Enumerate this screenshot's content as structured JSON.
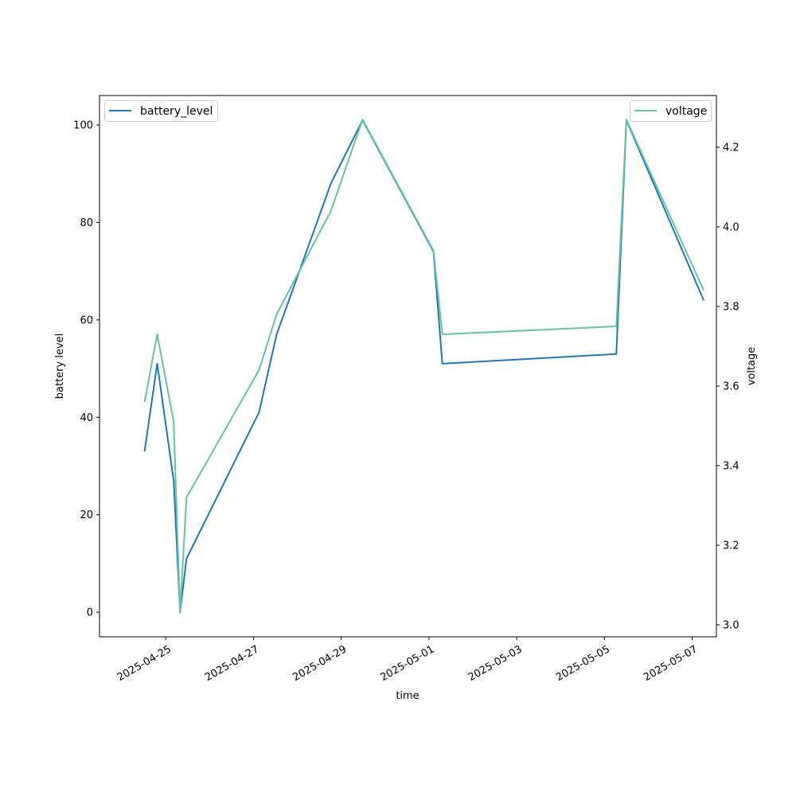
{
  "chart_data": {
    "type": "line",
    "xlabel": "time",
    "ylabel_left": "battery level",
    "ylabel_right": "voltage",
    "x_ticks": [
      "2025-04-25",
      "2025-04-27",
      "2025-04-29",
      "2025-05-01",
      "2025-05-03",
      "2025-05-05",
      "2025-05-07"
    ],
    "x_range": [
      "2025-04-23T11:45",
      "2025-05-07T13:15"
    ],
    "y_left_ticks": [
      "0",
      "20",
      "40",
      "60",
      "80",
      "100"
    ],
    "y_left_range": [
      -5.05,
      106.05
    ],
    "y_right_ticks": [
      "3.0",
      "3.2",
      "3.4",
      "3.6",
      "3.8",
      "4.0",
      "4.2"
    ],
    "y_right_range": [
      2.97,
      4.33
    ],
    "grid": false,
    "series": [
      {
        "name": "battery_level",
        "axis": "left",
        "color": "#1f77b4",
        "legend_position": "upper-left",
        "points": [
          {
            "x": "2025-04-24T12:25",
            "y": 33
          },
          {
            "x": "2025-04-24T19:20",
            "y": 51
          },
          {
            "x": "2025-04-25T04:20",
            "y": 27
          },
          {
            "x": "2025-04-25T07:50",
            "y": 0
          },
          {
            "x": "2025-04-25T11:20",
            "y": 11
          },
          {
            "x": "2025-04-27T03:00",
            "y": 41
          },
          {
            "x": "2025-04-27T12:40",
            "y": 57
          },
          {
            "x": "2025-04-28T18:20",
            "y": 88
          },
          {
            "x": "2025-04-29T11:40",
            "y": 101
          },
          {
            "x": "2025-05-01T02:30",
            "y": 74
          },
          {
            "x": "2025-05-01T07:20",
            "y": 51
          },
          {
            "x": "2025-05-05T06:30",
            "y": 53
          },
          {
            "x": "2025-05-05T12:00",
            "y": 101
          },
          {
            "x": "2025-05-07T06:20",
            "y": 64
          }
        ]
      },
      {
        "name": "voltage",
        "axis": "right",
        "color": "#66c2a5",
        "legend_position": "upper-right",
        "points": [
          {
            "x": "2025-04-24T12:25",
            "y": 3.56
          },
          {
            "x": "2025-04-24T19:20",
            "y": 3.73
          },
          {
            "x": "2025-04-25T04:20",
            "y": 3.51
          },
          {
            "x": "2025-04-25T07:50",
            "y": 3.03
          },
          {
            "x": "2025-04-25T11:20",
            "y": 3.32
          },
          {
            "x": "2025-04-27T03:00",
            "y": 3.64
          },
          {
            "x": "2025-04-27T12:40",
            "y": 3.78
          },
          {
            "x": "2025-04-28T18:20",
            "y": 4.04
          },
          {
            "x": "2025-04-29T11:40",
            "y": 4.27
          },
          {
            "x": "2025-05-01T02:30",
            "y": 3.94
          },
          {
            "x": "2025-05-01T07:20",
            "y": 3.73
          },
          {
            "x": "2025-05-05T06:30",
            "y": 3.75
          },
          {
            "x": "2025-05-05T12:00",
            "y": 4.27
          },
          {
            "x": "2025-05-07T06:20",
            "y": 3.84
          }
        ]
      }
    ]
  }
}
